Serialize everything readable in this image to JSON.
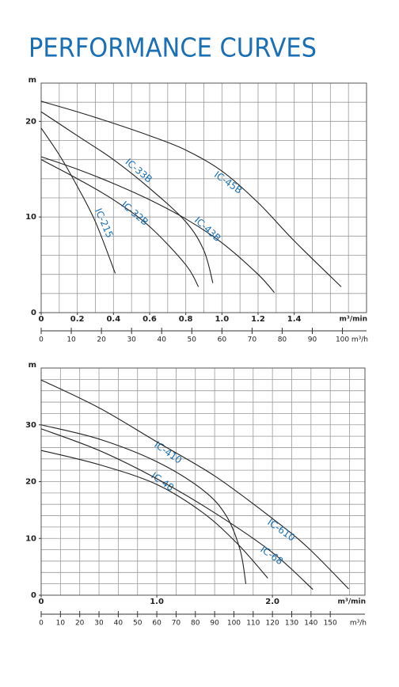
{
  "page_title": "PERFORMANCE CURVES",
  "chart_data": [
    {
      "type": "line",
      "ylabel": "m",
      "xlabel": "m³/min",
      "x2label": "m³/h",
      "xlim": [
        0,
        1.8
      ],
      "ylim": [
        0,
        24
      ],
      "x2lim": [
        0,
        108
      ],
      "yticks": [
        0,
        10,
        20
      ],
      "xticks": [
        0,
        0.2,
        0.4,
        0.6,
        0.8,
        {
          "value": 1,
          "label": "1.0"
        },
        1.2,
        1.4
      ],
      "x2ticks": [
        0,
        10,
        20,
        30,
        40,
        50,
        60,
        70,
        80,
        90,
        100
      ],
      "xgrid": [
        0,
        0.1,
        0.2,
        0.3,
        0.4,
        0.5,
        0.6,
        0.7,
        0.8,
        0.9,
        1,
        1.1,
        1.2,
        1.3,
        1.4,
        1.5,
        1.6,
        1.7,
        1.8
      ],
      "ygrid": [
        0,
        2,
        4,
        6,
        8,
        10,
        12,
        14,
        16,
        18,
        20,
        22,
        24
      ],
      "label_color": "#1a6fb5",
      "series": [
        {
          "name": "IC-33B",
          "color": "#222222",
          "x": [
            0,
            0.2,
            0.4,
            0.6,
            0.8,
            0.9,
            0.95
          ],
          "values": [
            21.0,
            18.5,
            16.0,
            13.0,
            9.5,
            6.5,
            3.1
          ]
        },
        {
          "name": "IC-45B",
          "color": "#222222",
          "x": [
            0,
            0.2,
            0.4,
            0.6,
            0.8,
            1.0,
            1.2,
            1.4,
            1.66
          ],
          "values": [
            22.1,
            21.0,
            19.8,
            18.5,
            17.0,
            14.8,
            11.5,
            7.5,
            2.7
          ]
        },
        {
          "name": "IC-32B",
          "color": "#222222",
          "x": [
            0,
            0.2,
            0.4,
            0.6,
            0.8,
            0.87
          ],
          "values": [
            16.0,
            14.0,
            11.8,
            9.0,
            5.0,
            2.7
          ]
        },
        {
          "name": "IC-43B",
          "color": "#222222",
          "x": [
            0,
            0.2,
            0.4,
            0.6,
            0.8,
            1.0,
            1.2,
            1.29
          ],
          "values": [
            16.3,
            15.0,
            13.5,
            11.8,
            9.8,
            7.3,
            4.0,
            2.1
          ]
        },
        {
          "name": "IC-215",
          "color": "#222222",
          "x": [
            0,
            0.1,
            0.2,
            0.3,
            0.41
          ],
          "values": [
            19.3,
            16.5,
            13.2,
            9.5,
            4.1
          ]
        }
      ]
    },
    {
      "type": "line",
      "ylabel": "m",
      "xlabel": "m³/min",
      "x2label": "m³/h",
      "xlim": [
        0,
        2.8
      ],
      "ylim": [
        0,
        40
      ],
      "x2lim": [
        0,
        168
      ],
      "yticks": [
        0,
        10,
        20,
        30
      ],
      "xticks": [
        0,
        {
          "value": 1,
          "label": "1.0"
        },
        {
          "value": 2,
          "label": "2.0"
        }
      ],
      "x2ticks": [
        0,
        10,
        20,
        30,
        40,
        50,
        60,
        70,
        80,
        90,
        100,
        110,
        120,
        130,
        140,
        150
      ],
      "x2grid": [
        0,
        10,
        20,
        30,
        40,
        50,
        60,
        70,
        80,
        90,
        100,
        110,
        120,
        130,
        140,
        150,
        160
      ],
      "ygrid": [
        0,
        2,
        4,
        6,
        8,
        10,
        12,
        14,
        16,
        18,
        20,
        22,
        24,
        26,
        28,
        30,
        32,
        34,
        36,
        38,
        40
      ],
      "label_color": "#1a6fb5",
      "series": [
        {
          "name": "IC-410",
          "color": "#222222",
          "x": [
            0,
            0.5,
            1.0,
            1.4,
            1.6,
            1.72,
            1.77
          ],
          "values": [
            30,
            27.5,
            23.5,
            18.5,
            14,
            8,
            2
          ]
        },
        {
          "name": "IC-48",
          "color": "#222222",
          "x": [
            0,
            0.5,
            1.0,
            1.4,
            1.7,
            1.96
          ],
          "values": [
            25.5,
            23,
            19.5,
            14.5,
            9,
            3
          ]
        },
        {
          "name": "IC-610",
          "color": "#222222",
          "x": [
            0,
            0.5,
            1.0,
            1.5,
            2.0,
            2.3,
            2.66
          ],
          "values": [
            37.9,
            33,
            27,
            21,
            13.5,
            8.5,
            1.1
          ]
        },
        {
          "name": "IC-68",
          "color": "#222222",
          "x": [
            0,
            0.5,
            1.0,
            1.5,
            2.0,
            2.35
          ],
          "values": [
            29.3,
            25.5,
            20.5,
            14.5,
            7.5,
            1.0
          ]
        }
      ]
    }
  ]
}
